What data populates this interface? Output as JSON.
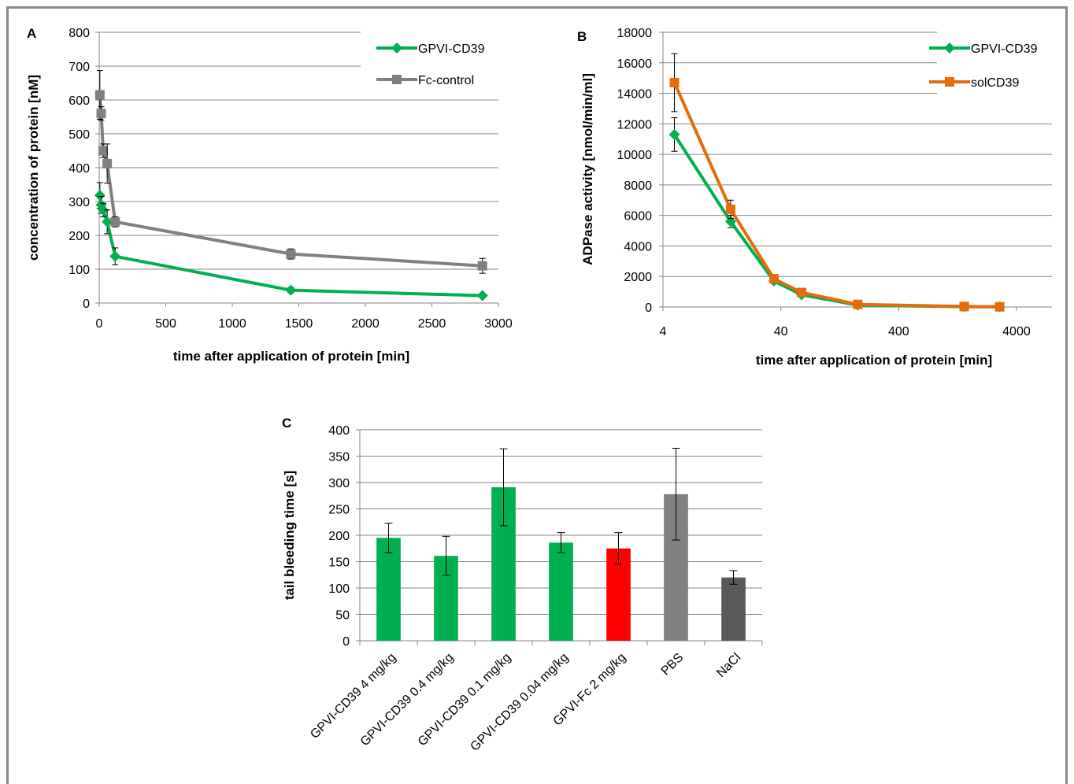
{
  "panels": {
    "A": "A",
    "B": "B",
    "C": "C"
  },
  "colors": {
    "green": "#00b050",
    "gray": "#808080",
    "orange": "#e46c0a",
    "red": "#ff0000",
    "darkgray": "#595959",
    "grid": "#868686"
  },
  "chart_data": [
    {
      "id": "A",
      "type": "line",
      "xlabel": "time after application of protein [min]",
      "ylabel": "concentration of protein [nM]",
      "xlim": [
        0,
        3000
      ],
      "ylim": [
        0,
        800
      ],
      "xticks": [
        0,
        500,
        1000,
        1500,
        2000,
        2500,
        3000
      ],
      "yticks": [
        0,
        100,
        200,
        300,
        400,
        500,
        600,
        700,
        800
      ],
      "legend_position": "top-right",
      "series": [
        {
          "name": "GPVI-CD39",
          "color": "#00b050",
          "marker": "diamond",
          "x": [
            5,
            15,
            30,
            60,
            120,
            1440,
            2880
          ],
          "y": [
            318,
            290,
            275,
            240,
            138,
            38,
            22
          ],
          "err": [
            38,
            25,
            20,
            35,
            25,
            8,
            5
          ]
        },
        {
          "name": "Fc-control",
          "color": "#808080",
          "marker": "square",
          "x": [
            5,
            15,
            30,
            60,
            120,
            1440,
            2880
          ],
          "y": [
            615,
            560,
            450,
            412,
            240,
            145,
            110
          ],
          "err": [
            72,
            20,
            20,
            58,
            15,
            15,
            22
          ]
        }
      ]
    },
    {
      "id": "B",
      "type": "line",
      "xlabel": "time after application of protein [min]",
      "ylabel": "ADPase activity [nmol/min/ml]",
      "xscale": "log",
      "xlim": [
        4,
        8000
      ],
      "ylim": [
        0,
        18000
      ],
      "xticks": [
        4,
        40,
        400,
        4000
      ],
      "yticks": [
        0,
        2000,
        4000,
        6000,
        8000,
        10000,
        12000,
        14000,
        16000,
        18000
      ],
      "legend_position": "top-right",
      "series": [
        {
          "name": "GPVI-CD39",
          "color": "#00b050",
          "marker": "diamond",
          "x": [
            5,
            15,
            35,
            60,
            180,
            1440,
            2880
          ],
          "y": [
            11300,
            5600,
            1700,
            800,
            120,
            20,
            10
          ],
          "err": [
            1100,
            400,
            150,
            100,
            50,
            10,
            5
          ]
        },
        {
          "name": "solCD39",
          "color": "#e46c0a",
          "marker": "square",
          "x": [
            5,
            15,
            35,
            60,
            180,
            1440,
            2880
          ],
          "y": [
            14700,
            6400,
            1850,
            950,
            170,
            30,
            10
          ],
          "err": [
            1900,
            600,
            150,
            100,
            50,
            10,
            5
          ]
        }
      ]
    },
    {
      "id": "C",
      "type": "bar",
      "ylabel": "tail bleeding time [s]",
      "ylim": [
        0,
        400
      ],
      "yticks": [
        0,
        50,
        100,
        150,
        200,
        250,
        300,
        350,
        400
      ],
      "categories": [
        "GPVI-CD39 4 mg/kg",
        "GPVI-CD39 0.4 mg/kg",
        "GPVI-CD39 0.1 mg/kg",
        "GPVI-CD39 0.04 mg/kg",
        "GPVI-Fc 2 mg/kg",
        "PBS",
        "NaCl"
      ],
      "values": [
        195,
        161,
        291,
        186,
        175,
        278,
        120
      ],
      "errors": [
        28,
        37,
        73,
        19,
        30,
        87,
        13
      ],
      "bar_colors": [
        "#00b050",
        "#00b050",
        "#00b050",
        "#00b050",
        "#ff0000",
        "#808080",
        "#595959"
      ]
    }
  ]
}
